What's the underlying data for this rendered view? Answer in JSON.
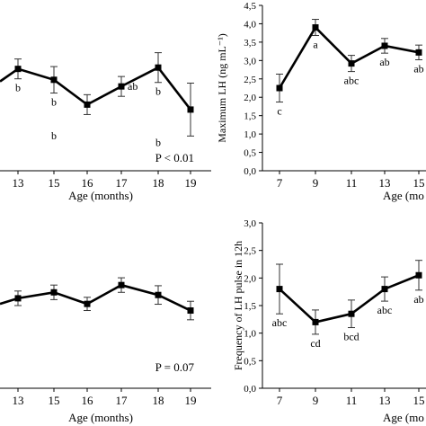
{
  "chart_data": [
    {
      "type": "line",
      "x": [
        13,
        15,
        16,
        17,
        18,
        19
      ],
      "y": [
        3.08,
        2.75,
        2.0,
        2.55,
        3.12,
        1.85
      ],
      "err": [
        0.3,
        0.4,
        0.3,
        0.3,
        0.45,
        0.8
      ],
      "letters": [
        "b",
        "b",
        "",
        "ab",
        "b",
        ""
      ],
      "extra_letters": [
        {
          "x": 15,
          "y": 0.95,
          "text": "b"
        },
        {
          "x": 18,
          "y": 0.75,
          "text": "b"
        }
      ],
      "ylim": [
        0,
        5
      ],
      "xlabel": "Age (months)",
      "ylabel": "",
      "annotation": "P < 0.01",
      "x_ticks": [
        "13",
        "15",
        "16",
        "17",
        "18",
        "19"
      ]
    },
    {
      "type": "line",
      "x": [
        7,
        9,
        11,
        13,
        15
      ],
      "y": [
        2.25,
        3.9,
        2.92,
        3.4,
        3.22
      ],
      "err": [
        0.38,
        0.22,
        0.22,
        0.2,
        0.2
      ],
      "letters": [
        "c",
        "a",
        "abc",
        "ab",
        "ab"
      ],
      "ylim": [
        0,
        4.5
      ],
      "y_ticks": [
        "0,0",
        "0,5",
        "1,0",
        "1,5",
        "2,0",
        "2,5",
        "3,0",
        "3,5",
        "4,0",
        "4,5"
      ],
      "xlabel": "Age (mo",
      "ylabel": "Maximum LH (ng mL⁻¹)",
      "x_ticks": [
        "7",
        "9",
        "11",
        "13",
        "15"
      ]
    },
    {
      "type": "line",
      "x": [
        13,
        15,
        16,
        17,
        18,
        19
      ],
      "y": [
        2.72,
        2.9,
        2.55,
        3.12,
        2.82,
        2.35
      ],
      "err": [
        0.22,
        0.22,
        0.2,
        0.22,
        0.28,
        0.28
      ],
      "ylim": [
        0,
        5
      ],
      "xlabel": "Age (months)",
      "ylabel": "",
      "annotation": "P = 0.07",
      "x_ticks": [
        "13",
        "15",
        "16",
        "17",
        "18",
        "19"
      ]
    },
    {
      "type": "line",
      "x": [
        7,
        9,
        11,
        13,
        15
      ],
      "y": [
        1.8,
        1.2,
        1.35,
        1.8,
        2.05
      ],
      "err": [
        0.45,
        0.22,
        0.25,
        0.22,
        0.27
      ],
      "letters": [
        "abc",
        "cd",
        "bcd",
        "abc",
        "ab"
      ],
      "ylim": [
        0,
        3.0
      ],
      "y_ticks": [
        "0,0",
        "0,5",
        "1,0",
        "1,5",
        "2,0",
        "2,5",
        "3,0"
      ],
      "xlabel": "Age (mo",
      "ylabel": "Frequency of LH pulse in 12h",
      "x_ticks": [
        "7",
        "9",
        "11",
        "13",
        "15"
      ]
    }
  ]
}
